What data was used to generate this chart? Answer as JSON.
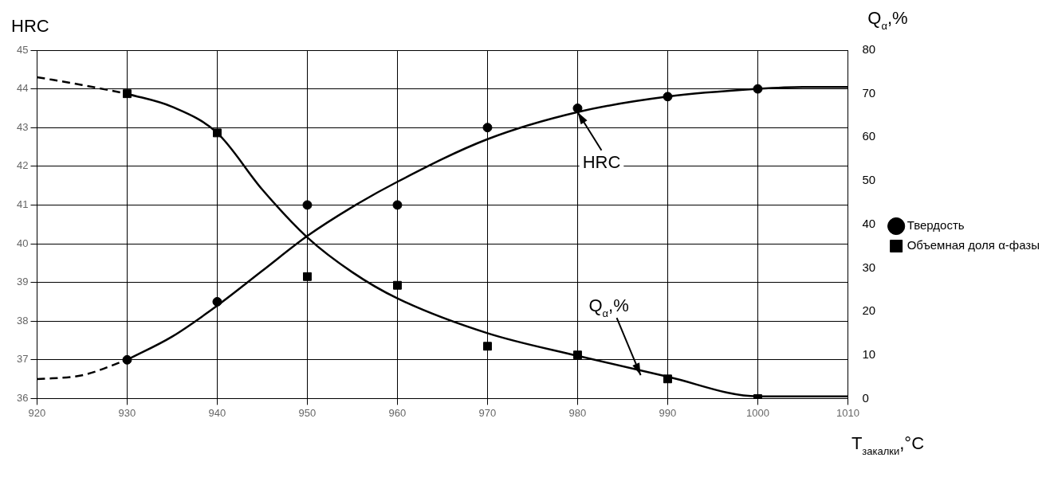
{
  "chart_data": {
    "type": "scatter",
    "xlabel": "T$_{закалки}$,°C",
    "ylabel": "HRC",
    "y2label": "Q$_{α}$,%",
    "xlim": [
      920,
      1010
    ],
    "xticks": [
      920,
      930,
      940,
      950,
      960,
      970,
      980,
      990,
      1000,
      1010
    ],
    "ylim": [
      36,
      45
    ],
    "yticks": [
      36,
      37,
      38,
      39,
      40,
      41,
      42,
      43,
      44,
      45
    ],
    "y2lim": [
      0,
      80
    ],
    "y2ticks": [
      0,
      10,
      20,
      30,
      40,
      50,
      60,
      70,
      80
    ],
    "grid": true,
    "legend": "right",
    "series": [
      {
        "name": "Твердость",
        "marker": "circle",
        "color": "#000000",
        "x": [
          930,
          940,
          950,
          960,
          970,
          980,
          990,
          1000
        ],
        "values": [
          37,
          38.5,
          41,
          41,
          43,
          43.5,
          43.8,
          44
        ]
      },
      {
        "name": "Объемная доля α-фазы",
        "marker": "square",
        "axis": "y2",
        "color": "#000000",
        "x": [
          930,
          940,
          950,
          960,
          970,
          980,
          990,
          1000
        ],
        "values": [
          70,
          61,
          28,
          26,
          12,
          10,
          4.5,
          0
        ]
      },
      {
        "type": "line",
        "line_style": "solid",
        "color": "#000000",
        "x": [
          930,
          935,
          940,
          945,
          950,
          955,
          960,
          970,
          980,
          990,
          1000,
          1005,
          1010
        ],
        "values": [
          37,
          37.6,
          38.4,
          39.3,
          40.2,
          40.95,
          41.6,
          42.7,
          43.4,
          43.8,
          44,
          44.05,
          44.05
        ]
      },
      {
        "type": "line",
        "line_style": "dashed",
        "color": "#000000",
        "x": [
          920,
          925,
          930
        ],
        "values": [
          36.5,
          36.6,
          37
        ]
      },
      {
        "type": "line",
        "line_style": "solid",
        "axis": "y2",
        "color": "#000000",
        "x": [
          930,
          935,
          940,
          945,
          950,
          955,
          960,
          970,
          980,
          990,
          1000,
          1005,
          1010
        ],
        "values": [
          70,
          67,
          61,
          48,
          37,
          29,
          23,
          15,
          9.8,
          5,
          0.5,
          0.5,
          0.5
        ]
      },
      {
        "type": "line",
        "line_style": "dashed",
        "axis": "y2",
        "color": "#000000",
        "x": [
          920,
          925,
          930
        ],
        "values": [
          73.8,
          72,
          70
        ]
      }
    ],
    "annotations": [
      {
        "text": "HRC",
        "x": 980,
        "y": 43.4
      },
      {
        "text": "Q$_{α}$,%",
        "x": 987,
        "y": 36.6
      }
    ]
  }
}
